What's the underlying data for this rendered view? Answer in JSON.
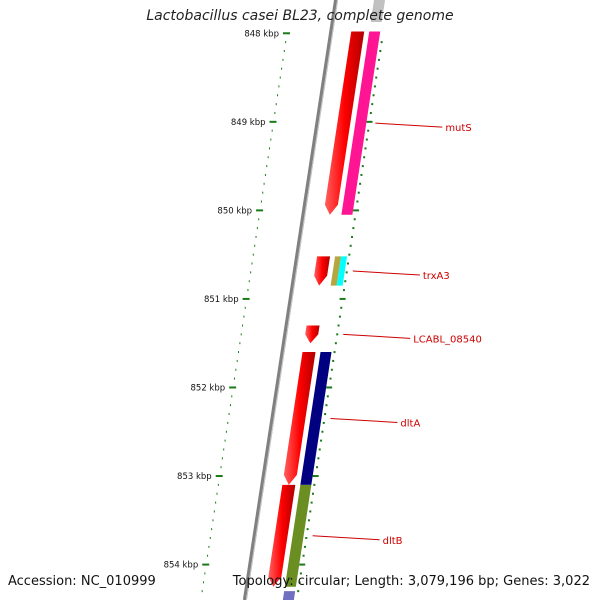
{
  "title": "Lactobacillus casei BL23, complete genome",
  "footer": {
    "accession_label": "Accession:",
    "accession": "NC_010999",
    "topology_label": "Topology:",
    "topology": "circular",
    "length_label": "Length:",
    "length": "3,079,196 bp",
    "genes_label": "Genes:",
    "genes": "3,022"
  },
  "ruler": {
    "unit": "kbp",
    "ticks": [
      {
        "value": 848,
        "label": "848 kbp"
      },
      {
        "value": 849,
        "label": "849 kbp"
      },
      {
        "value": 850,
        "label": "850 kbp"
      },
      {
        "value": 851,
        "label": "851 kbp"
      },
      {
        "value": 852,
        "label": "852 kbp"
      },
      {
        "value": 853,
        "label": "853 kbp"
      },
      {
        "value": 854,
        "label": "854 kbp"
      }
    ]
  },
  "genes": [
    {
      "name": "mutS",
      "start": 847.98,
      "end": 850.05,
      "strand": "+",
      "color": "#ff0000",
      "track2_color": "#ff1493"
    },
    {
      "name": "trxA3",
      "start": 850.52,
      "end": 850.85,
      "strand": "+",
      "color": "#ff0000",
      "track2_colors": [
        "#b5a642",
        "#00ffff"
      ]
    },
    {
      "name": "LCABL_08540",
      "start": 851.3,
      "end": 851.5,
      "strand": "+",
      "color": "#ff0000"
    },
    {
      "name": "dltA",
      "start": 851.6,
      "end": 853.1,
      "strand": "+",
      "color": "#ff0000",
      "track2_color": "#000080"
    },
    {
      "name": "dltB",
      "start": 853.1,
      "end": 854.25,
      "strand": "+",
      "color": "#ff0000",
      "track2_color": "#6b8e23"
    }
  ],
  "colors": {
    "backbone": "#808080",
    "ruler": "#1a7a1a",
    "label": "#cc0000"
  }
}
